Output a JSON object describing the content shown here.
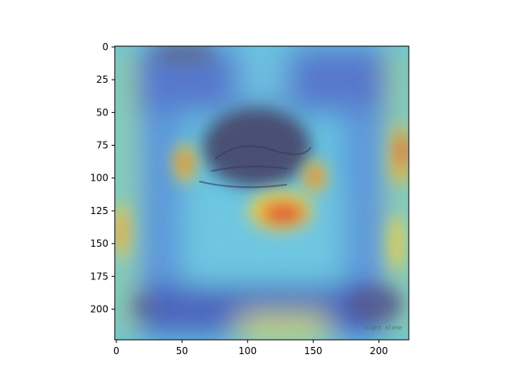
{
  "figure": {
    "x_axis": {
      "ticks": [
        0,
        50,
        100,
        150,
        200
      ],
      "range": [
        0,
        224
      ]
    },
    "y_axis": {
      "ticks": [
        0,
        25,
        50,
        75,
        100,
        125,
        150,
        175,
        200
      ],
      "range": [
        0,
        224
      ],
      "inverted": true
    },
    "image": {
      "description_kind": "attention-heatmap-overlay",
      "colormap": "jet",
      "watermark": "Eight alone"
    }
  }
}
